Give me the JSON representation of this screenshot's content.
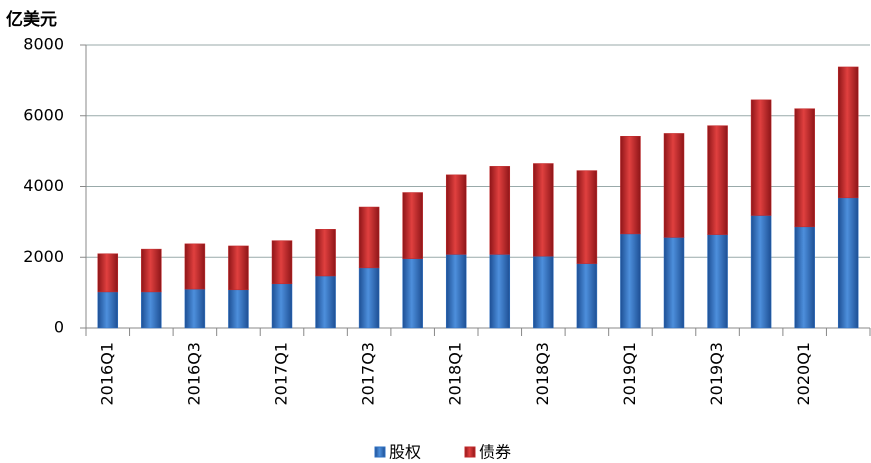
{
  "chart_data": {
    "type": "stacked-bar",
    "y_label": "亿美元",
    "categories": [
      "2016Q1",
      null,
      "2016Q3",
      null,
      "2017Q1",
      null,
      "2017Q3",
      null,
      "2018Q1",
      null,
      "2018Q3",
      null,
      "2019Q1",
      null,
      "2019Q3",
      null,
      "2020Q1",
      null
    ],
    "series": [
      {
        "name": "股权",
        "color": "#2e6fc0",
        "values": [
          1020,
          1020,
          1100,
          1080,
          1250,
          1470,
          1700,
          1960,
          2080,
          2080,
          2030,
          1820,
          2660,
          2560,
          2640,
          3180,
          2860,
          3680
        ]
      },
      {
        "name": "债券",
        "color": "#c0282a",
        "values": [
          1080,
          1210,
          1280,
          1240,
          1220,
          1320,
          1720,
          1870,
          2250,
          2490,
          2620,
          2630,
          2760,
          2940,
          3080,
          3270,
          3340,
          3700
        ]
      }
    ],
    "ylim": [
      0,
      8000
    ],
    "yticks": [
      0,
      2000,
      4000,
      6000,
      8000
    ],
    "grid": true,
    "legend": "bottom"
  }
}
